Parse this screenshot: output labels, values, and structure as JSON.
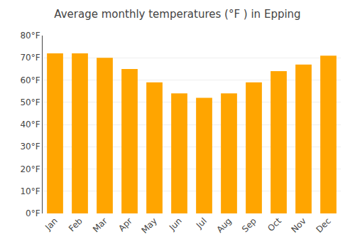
{
  "chart_data": {
    "type": "bar",
    "title": "Average monthly temperatures (°F ) in Epping",
    "categories": [
      "Jan",
      "Feb",
      "Mar",
      "Apr",
      "May",
      "Jun",
      "Jul",
      "Aug",
      "Sep",
      "Oct",
      "Nov",
      "Dec"
    ],
    "values": [
      72,
      72,
      70,
      65,
      59,
      54,
      52,
      54,
      59,
      64,
      67,
      71
    ],
    "color": "#FFA500",
    "ylim": [
      0,
      80
    ],
    "yticks": [
      {
        "value": 0,
        "label": "0°F"
      },
      {
        "value": 10,
        "label": "10°F"
      },
      {
        "value": 20,
        "label": "20°F"
      },
      {
        "value": 30,
        "label": "30°F"
      },
      {
        "value": 40,
        "label": "40°F"
      },
      {
        "value": 50,
        "label": "50°F"
      },
      {
        "value": 60,
        "label": "60°F"
      },
      {
        "value": 70,
        "label": "70°F"
      },
      {
        "value": 80,
        "label": "80°F"
      }
    ],
    "grid": true
  }
}
